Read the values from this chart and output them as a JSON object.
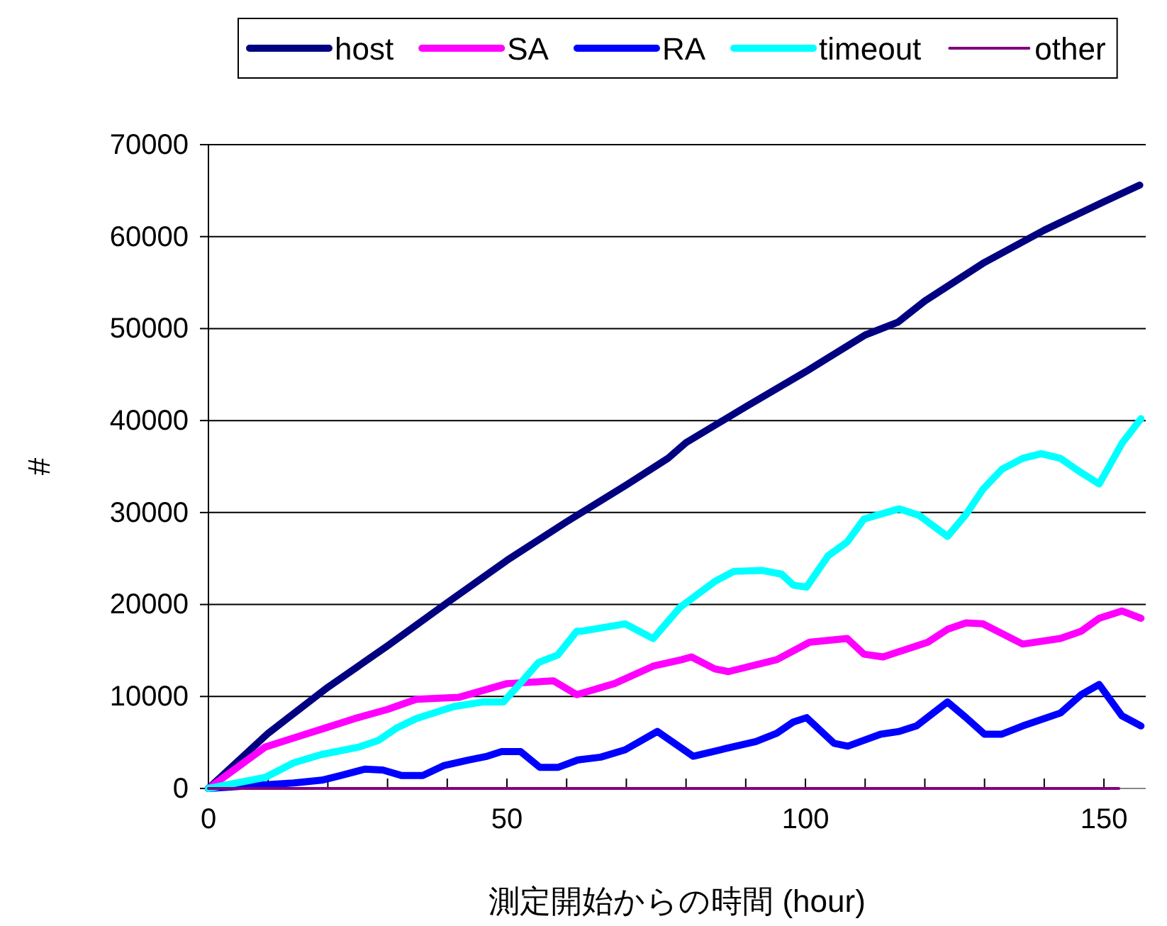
{
  "chart_data": {
    "type": "line",
    "xlabel": "測定開始からの時間 (hour)",
    "ylabel": "#",
    "xlim": [
      0,
      157
    ],
    "xticks": [
      0,
      {
        "value": 10,
        "label": null
      },
      {
        "value": 20,
        "label": null
      },
      {
        "value": 30,
        "label": null
      },
      {
        "value": 40,
        "label": null
      },
      50,
      {
        "value": 60,
        "label": null
      },
      {
        "value": 70,
        "label": null
      },
      {
        "value": 80,
        "label": null
      },
      {
        "value": 90,
        "label": null
      },
      100,
      {
        "value": 110,
        "label": null
      },
      {
        "value": 120,
        "label": null
      },
      {
        "value": 130,
        "label": null
      },
      {
        "value": 140,
        "label": null
      },
      150
    ],
    "ylim": [
      0,
      70000
    ],
    "yticks": [
      0,
      10000,
      20000,
      30000,
      40000,
      50000,
      60000,
      70000
    ],
    "grid": "y",
    "legend": "top",
    "marker": "none",
    "line_style": "solid",
    "series": [
      {
        "name": "host",
        "color": "#000080",
        "x": [
          0,
          10,
          20,
          30,
          40,
          50,
          60,
          70,
          77,
          80,
          90,
          100,
          110,
          115.5,
          120,
          130,
          140,
          150,
          156
        ],
        "values": [
          0,
          6000,
          11000,
          15500,
          20200,
          24800,
          29000,
          33000,
          35900,
          37600,
          41500,
          45300,
          49300,
          50700,
          53000,
          57200,
          60700,
          63800,
          65600
        ]
      },
      {
        "name": "SA",
        "color": "#ff00ff",
        "x": [
          0,
          9.5,
          14.3,
          19.7,
          24.5,
          30,
          34.8,
          41.9,
          50,
          57.8,
          61.7,
          68,
          74.5,
          79.3,
          80.9,
          84.8,
          87.1,
          95.2,
          100.7,
          107,
          109.8,
          113,
          120.5,
          123.8,
          126.9,
          129.7,
          136.4,
          142.7,
          146.2,
          149.2,
          153,
          156.2
        ],
        "values": [
          0,
          4500,
          5500,
          6600,
          7600,
          8600,
          9700,
          9900,
          11400,
          11700,
          10200,
          11400,
          13300,
          14000,
          14300,
          13000,
          12700,
          14000,
          15900,
          16300,
          14600,
          14300,
          15900,
          17300,
          18000,
          17900,
          15700,
          16300,
          17100,
          18500,
          19300,
          18500
        ]
      },
      {
        "name": "RA",
        "color": "#0000ff",
        "x": [
          0,
          14.3,
          19,
          22.1,
          26.2,
          29.2,
          32.4,
          35.9,
          39.5,
          43.6,
          46.7,
          49.1,
          52.3,
          55.5,
          58.6,
          61.9,
          65.7,
          69.8,
          75.2,
          81.2,
          86.4,
          91.7,
          95.2,
          97.9,
          100.2,
          104.8,
          107.1,
          112.6,
          115.7,
          118.6,
          123.8,
          126.9,
          130,
          132.9,
          136.4,
          142.7,
          146.2,
          149.2,
          153,
          156.2
        ],
        "values": [
          0,
          600,
          900,
          1400,
          2100,
          2000,
          1400,
          1400,
          2500,
          3100,
          3500,
          4000,
          4000,
          2300,
          2300,
          3100,
          3400,
          4200,
          6200,
          3500,
          4300,
          5100,
          6000,
          7200,
          7700,
          4900,
          4600,
          5900,
          6200,
          6800,
          9400,
          7700,
          5900,
          5900,
          6800,
          8200,
          10200,
          11300,
          7900,
          6800
        ]
      },
      {
        "name": "timeout",
        "color": "#00ffff",
        "x": [
          0,
          9.5,
          14.3,
          19,
          25.2,
          28.4,
          31.6,
          34.8,
          41.1,
          45.9,
          49.4,
          52.2,
          55.3,
          58.5,
          61.7,
          62.6,
          69.8,
          74.5,
          79,
          84.8,
          88,
          92.8,
          96,
          98,
          100.2,
          103.8,
          107,
          109.8,
          115.7,
          119,
          123.8,
          126.9,
          129.7,
          132.9,
          136.4,
          139.5,
          142.7,
          145.8,
          149.2,
          153,
          156.2
        ],
        "values": [
          0,
          1200,
          2800,
          3700,
          4500,
          5200,
          6600,
          7600,
          8900,
          9400,
          9400,
          11400,
          13700,
          14500,
          17100,
          17100,
          17900,
          16300,
          19700,
          22500,
          23600,
          23700,
          23300,
          22100,
          21900,
          25300,
          26800,
          29300,
          30400,
          29700,
          27400,
          29800,
          32500,
          34700,
          35900,
          36400,
          35900,
          34500,
          33100,
          37500,
          40200
        ]
      },
      {
        "name": "other",
        "color": "#800080",
        "x": [
          0,
          152.5
        ],
        "values": [
          0,
          0
        ]
      }
    ]
  }
}
